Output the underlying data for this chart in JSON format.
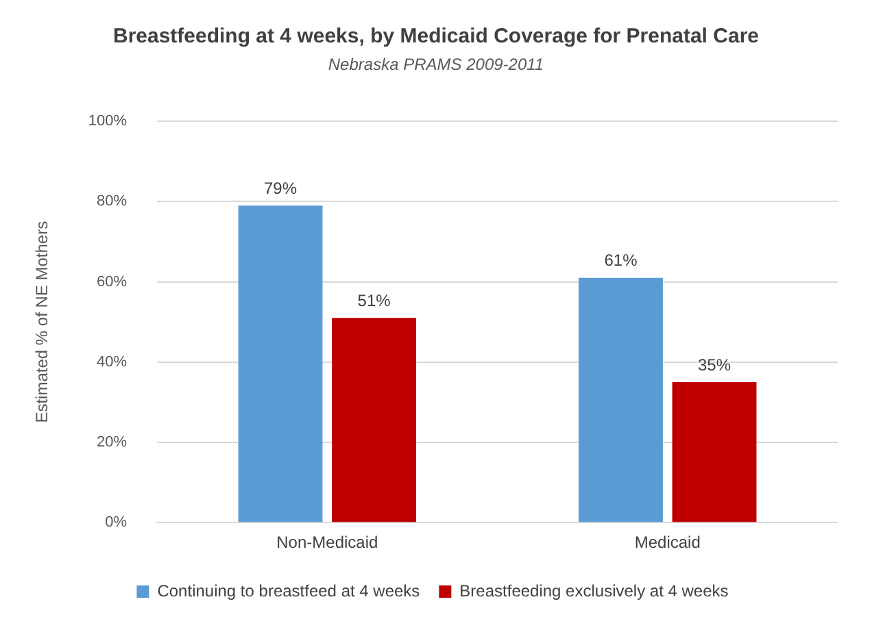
{
  "chart_data": {
    "type": "bar",
    "title": "Breastfeeding at 4 weeks, by Medicaid Coverage for Prenatal Care",
    "subtitle": "Nebraska PRAMS 2009-2011",
    "ylabel": "Estimated % of NE Mothers",
    "categories": [
      "Non-Medicaid",
      "Medicaid"
    ],
    "series": [
      {
        "name": "Continuing to breastfeed at 4 weeks",
        "color": "#5b9bd5",
        "values": [
          79,
          61
        ],
        "value_labels": [
          "79%",
          "61%"
        ]
      },
      {
        "name": "Breastfeeding exclusively at 4 weeks",
        "color": "#c00000",
        "values": [
          51,
          35
        ],
        "value_labels": [
          "51%",
          "35%"
        ]
      }
    ],
    "ylim": [
      0,
      100
    ],
    "yticks": [
      {
        "value": 0,
        "label": "0%"
      },
      {
        "value": 20,
        "label": "20%"
      },
      {
        "value": 40,
        "label": "40%"
      },
      {
        "value": 60,
        "label": "60%"
      },
      {
        "value": 80,
        "label": "80%"
      },
      {
        "value": 100,
        "label": "100%"
      }
    ],
    "grid": "y",
    "legend": "bottom"
  }
}
